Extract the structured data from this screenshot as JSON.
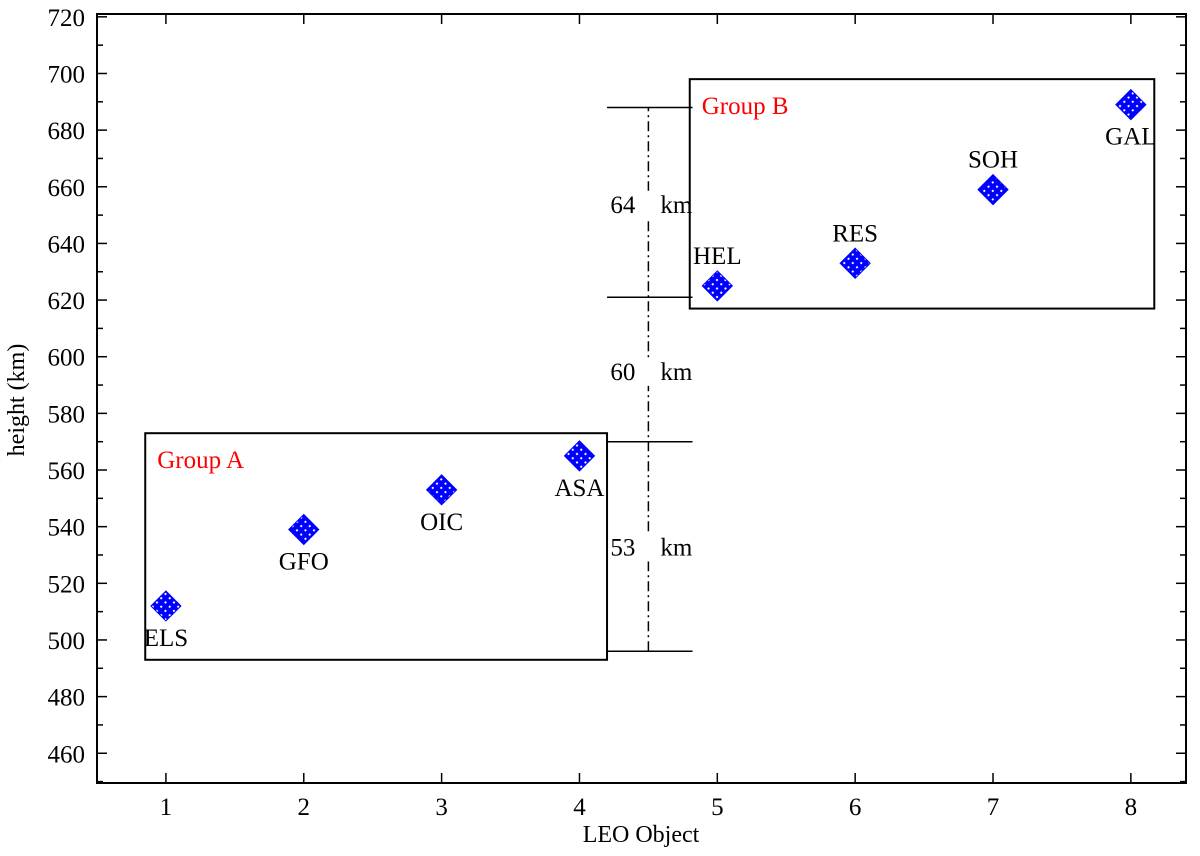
{
  "chart_data": {
    "type": "scatter",
    "title": "",
    "xlabel": "LEO Object",
    "ylabel": "height (km)",
    "xlim": [
      0.5,
      8.4
    ],
    "ylim": [
      449.5,
      721
    ],
    "xticks": [
      1,
      2,
      3,
      4,
      5,
      6,
      7,
      8
    ],
    "yticks": [
      460,
      480,
      500,
      520,
      540,
      560,
      580,
      600,
      620,
      640,
      660,
      680,
      700,
      720
    ],
    "grid": false,
    "marker_color": "#0000ff",
    "points": [
      {
        "x": 1,
        "y": 512,
        "label": "ELS",
        "label_position": "below"
      },
      {
        "x": 2,
        "y": 539,
        "label": "GFO",
        "label_position": "below"
      },
      {
        "x": 3,
        "y": 553,
        "label": "OIC",
        "label_position": "below"
      },
      {
        "x": 4,
        "y": 565,
        "label": "ASA",
        "label_position": "below"
      },
      {
        "x": 5,
        "y": 625,
        "label": "HEL",
        "label_position": "above"
      },
      {
        "x": 6,
        "y": 633,
        "label": "RES",
        "label_position": "above"
      },
      {
        "x": 7,
        "y": 659,
        "label": "SOH",
        "label_position": "above"
      },
      {
        "x": 8,
        "y": 689,
        "label": "GAL",
        "label_position": "below"
      }
    ],
    "groups": [
      {
        "name": "Group A",
        "x_range": [
          0.85,
          4.2
        ],
        "y_range": [
          493,
          573
        ],
        "color": "#ff0000"
      },
      {
        "name": "Group B",
        "x_range": [
          4.8,
          8.17
        ],
        "y_range": [
          617,
          698
        ],
        "color": "#ff0000"
      }
    ],
    "gap_annotations": {
      "x": 4.5,
      "levels": [
        496,
        570,
        621,
        688
      ],
      "labels": [
        {
          "text": "53 km",
          "y": 533
        },
        {
          "text": "60 km",
          "y": 595
        },
        {
          "text": "64 km",
          "y": 654
        }
      ]
    }
  }
}
